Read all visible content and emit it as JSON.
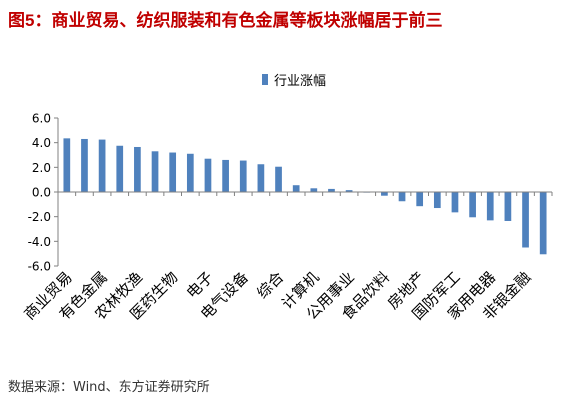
{
  "title_prefix": "图5",
  "title_text": "：商业贸易、纺织服装和有色金属等板块涨幅居于前三",
  "source": "数据来源：Wind、东方证券研究所",
  "colors": {
    "bar": "#4f81bd",
    "title": "#c00000",
    "axis": "#808080"
  },
  "chart_data": {
    "type": "bar",
    "title": "图5：商业贸易、纺织服装和有色金属等板块涨幅居于前三",
    "legend": {
      "position": "top-center",
      "entries": [
        "行业涨幅"
      ]
    },
    "series": [
      {
        "name": "行业涨幅",
        "values": [
          4.35,
          4.3,
          4.25,
          3.75,
          3.65,
          3.3,
          3.2,
          3.1,
          2.7,
          2.6,
          2.55,
          2.25,
          2.05,
          0.55,
          0.3,
          0.25,
          0.15,
          -0.05,
          -0.3,
          -0.75,
          -1.15,
          -1.3,
          -1.65,
          -2.05,
          -2.3,
          -2.35,
          -4.5,
          -5.05
        ]
      }
    ],
    "categories": [
      "商业贸易",
      "",
      "有色金属",
      "",
      "农林牧渔",
      "",
      "医药生物",
      "",
      "电子",
      "",
      "电气设备",
      "",
      "综合",
      "",
      "计算机",
      "",
      "公用事业",
      "",
      "食品饮料",
      "",
      "房地产",
      "",
      "国防军工",
      "",
      "家用电器",
      "",
      "非银金融",
      ""
    ],
    "xlabel": "",
    "ylabel": "",
    "ylim": [
      -6.0,
      6.0
    ],
    "yticks": [
      "6.0",
      "4.0",
      "2.0",
      "0.0",
      "-2.0",
      "-4.0",
      "-6.0"
    ],
    "grid": false
  }
}
